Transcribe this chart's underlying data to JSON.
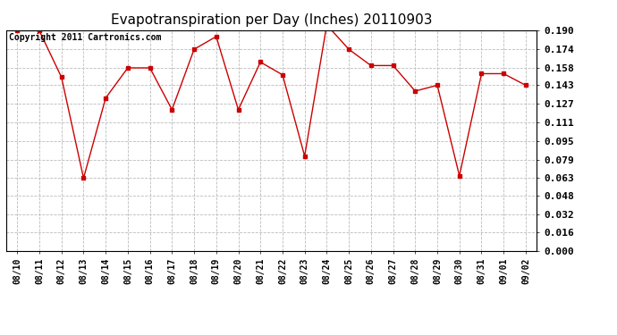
{
  "title": "Evapotranspiration per Day (Inches) 20110903",
  "copyright": "Copyright 2011 Cartronics.com",
  "dates": [
    "08/10",
    "08/11",
    "08/12",
    "08/13",
    "08/14",
    "08/15",
    "08/16",
    "08/17",
    "08/18",
    "08/19",
    "08/20",
    "08/21",
    "08/22",
    "08/23",
    "08/24",
    "08/25",
    "08/26",
    "08/27",
    "08/28",
    "08/29",
    "08/30",
    "08/31",
    "09/01",
    "09/02"
  ],
  "values": [
    0.19,
    0.19,
    0.15,
    0.063,
    0.132,
    0.158,
    0.158,
    0.122,
    0.174,
    0.185,
    0.122,
    0.163,
    0.152,
    0.082,
    0.195,
    0.174,
    0.16,
    0.16,
    0.138,
    0.143,
    0.065,
    0.153,
    0.153,
    0.143
  ],
  "line_color": "#cc0000",
  "marker": "s",
  "marker_size": 3,
  "background_color": "#ffffff",
  "plot_bg_color": "#ffffff",
  "grid_color": "#bbbbbb",
  "ylim": [
    0.0,
    0.1905
  ],
  "yticks": [
    0.0,
    0.016,
    0.032,
    0.048,
    0.063,
    0.079,
    0.095,
    0.111,
    0.127,
    0.143,
    0.158,
    0.174,
    0.19
  ],
  "title_fontsize": 11,
  "copyright_fontsize": 7,
  "tick_fontsize": 8,
  "xtick_fontsize": 7
}
